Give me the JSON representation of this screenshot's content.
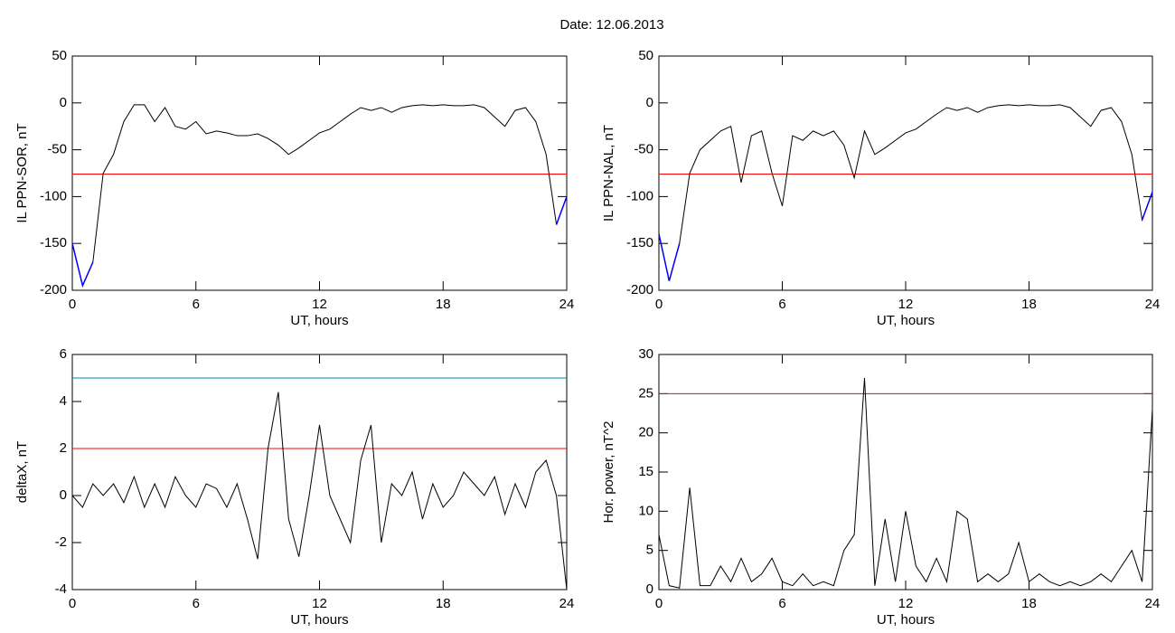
{
  "title": "Date:  12.06.2013",
  "chart_data": [
    {
      "type": "line",
      "xlabel": "UT, hours",
      "ylabel": "IL PPN-SOR, nT",
      "x": [
        0,
        0.5,
        1,
        1.5,
        2,
        2.5,
        3,
        3.5,
        4,
        4.5,
        5,
        5.5,
        6,
        6.5,
        7,
        7.5,
        8,
        8.5,
        9,
        9.5,
        10,
        10.5,
        11,
        11.5,
        12,
        12.5,
        13,
        13.5,
        14,
        14.5,
        15,
        15.5,
        16,
        16.5,
        17,
        17.5,
        18,
        18.5,
        19,
        19.5,
        20,
        20.5,
        21,
        21.5,
        22,
        22.5,
        23,
        23.5,
        24
      ],
      "series": [
        {
          "color": "#000000",
          "values": [
            -150,
            -195,
            -170,
            -75,
            -55,
            -20,
            -2,
            -2,
            -20,
            -5,
            -25,
            -28,
            -20,
            -33,
            -30,
            -32,
            -35,
            -35,
            -33,
            -38,
            -45,
            -55,
            -48,
            -40,
            -32,
            -28,
            -20,
            -12,
            -5,
            -8,
            -5,
            -10,
            -5,
            -3,
            -2,
            -3,
            -2,
            -3,
            -3,
            -2,
            -5,
            -15,
            -25,
            -8,
            -5,
            -20,
            -55,
            -130,
            -100
          ]
        }
      ],
      "below_color": "#0000ff",
      "hlines": [
        {
          "value": -76,
          "color": "#ff0000"
        }
      ],
      "xlim": [
        0,
        24
      ],
      "xticks": [
        0,
        6,
        12,
        18,
        24
      ],
      "ylim": [
        -200,
        50
      ],
      "yticks": [
        -200,
        -150,
        -100,
        -50,
        0,
        50
      ]
    },
    {
      "type": "line",
      "xlabel": "UT, hours",
      "ylabel": "IL PPN-NAL, nT",
      "x": [
        0,
        0.5,
        1,
        1.5,
        2,
        2.5,
        3,
        3.5,
        4,
        4.5,
        5,
        5.5,
        6,
        6.5,
        7,
        7.5,
        8,
        8.5,
        9,
        9.5,
        10,
        10.5,
        11,
        11.5,
        12,
        12.5,
        13,
        13.5,
        14,
        14.5,
        15,
        15.5,
        16,
        16.5,
        17,
        17.5,
        18,
        18.5,
        19,
        19.5,
        20,
        20.5,
        21,
        21.5,
        22,
        22.5,
        23,
        23.5,
        24
      ],
      "series": [
        {
          "color": "#000000",
          "values": [
            -140,
            -190,
            -150,
            -75,
            -50,
            -40,
            -30,
            -25,
            -85,
            -35,
            -30,
            -75,
            -110,
            -35,
            -40,
            -30,
            -35,
            -30,
            -45,
            -80,
            -30,
            -55,
            -48,
            -40,
            -32,
            -28,
            -20,
            -12,
            -5,
            -8,
            -5,
            -10,
            -5,
            -3,
            -2,
            -3,
            -2,
            -3,
            -3,
            -2,
            -5,
            -15,
            -25,
            -8,
            -5,
            -20,
            -55,
            -125,
            -95
          ]
        }
      ],
      "below_color": "#0000ff",
      "hlines": [
        {
          "value": -76,
          "color": "#ff0000"
        }
      ],
      "xlim": [
        0,
        24
      ],
      "xticks": [
        0,
        6,
        12,
        18,
        24
      ],
      "ylim": [
        -200,
        50
      ],
      "yticks": [
        -200,
        -150,
        -100,
        -50,
        0,
        50
      ]
    },
    {
      "type": "line",
      "xlabel": "UT, hours",
      "ylabel": "deltaX, nT",
      "x": [
        0,
        0.5,
        1,
        1.5,
        2,
        2.5,
        3,
        3.5,
        4,
        4.5,
        5,
        5.5,
        6,
        6.5,
        7,
        7.5,
        8,
        8.5,
        9,
        9.5,
        10,
        10.5,
        11,
        11.5,
        12,
        12.5,
        13,
        13.5,
        14,
        14.5,
        15,
        15.5,
        16,
        16.5,
        17,
        17.5,
        18,
        18.5,
        19,
        19.5,
        20,
        20.5,
        21,
        21.5,
        22,
        22.5,
        23,
        23.5,
        24
      ],
      "series": [
        {
          "color": "#000000",
          "values": [
            0,
            -0.5,
            0.5,
            0,
            0.5,
            -0.3,
            0.8,
            -0.5,
            0.5,
            -0.5,
            0.8,
            0,
            -0.5,
            0.5,
            0.3,
            -0.5,
            0.5,
            -1,
            -2.7,
            2,
            4.4,
            -1,
            -2.6,
            0,
            3,
            0,
            -1,
            -2,
            1.5,
            3,
            -2,
            0.5,
            0,
            1,
            -1,
            0.5,
            -0.5,
            0,
            1,
            0.5,
            0,
            0.8,
            -0.8,
            0.5,
            -0.5,
            1,
            1.5,
            0,
            -4
          ]
        }
      ],
      "hlines": [
        {
          "value": 5,
          "color": "#0088aa"
        },
        {
          "value": 2,
          "color": "#ff0000"
        }
      ],
      "xlim": [
        0,
        24
      ],
      "xticks": [
        0,
        6,
        12,
        18,
        24
      ],
      "ylim": [
        -4,
        6
      ],
      "yticks": [
        -4,
        -2,
        0,
        2,
        4,
        6
      ]
    },
    {
      "type": "line",
      "xlabel": "UT, hours",
      "ylabel": "Hor. power, nT^2",
      "x": [
        0,
        0.5,
        1,
        1.5,
        2,
        2.5,
        3,
        3.5,
        4,
        4.5,
        5,
        5.5,
        6,
        6.5,
        7,
        7.5,
        8,
        8.5,
        9,
        9.5,
        10,
        10.5,
        11,
        11.5,
        12,
        12.5,
        13,
        13.5,
        14,
        14.5,
        15,
        15.5,
        16,
        16.5,
        17,
        17.5,
        18,
        18.5,
        19,
        19.5,
        20,
        20.5,
        21,
        21.5,
        22,
        22.5,
        23,
        23.5,
        24
      ],
      "series": [
        {
          "color": "#000000",
          "values": [
            7,
            0.5,
            0.2,
            13,
            0.5,
            0.5,
            3,
            1,
            4,
            1,
            2,
            4,
            1,
            0.5,
            2,
            0.5,
            1,
            0.5,
            5,
            7,
            27,
            0.5,
            9,
            1,
            10,
            3,
            1,
            4,
            1,
            10,
            9,
            1,
            2,
            1,
            2,
            6,
            1,
            2,
            1,
            0.5,
            1,
            0.5,
            1,
            2,
            1,
            3,
            5,
            1,
            23
          ]
        }
      ],
      "hlines": [
        {
          "value": 25,
          "color": "#ff0000"
        }
      ],
      "xlim": [
        0,
        24
      ],
      "xticks": [
        0,
        6,
        12,
        18,
        24
      ],
      "ylim": [
        0,
        30
      ],
      "yticks": [
        0,
        5,
        10,
        15,
        20,
        25,
        30
      ]
    }
  ]
}
